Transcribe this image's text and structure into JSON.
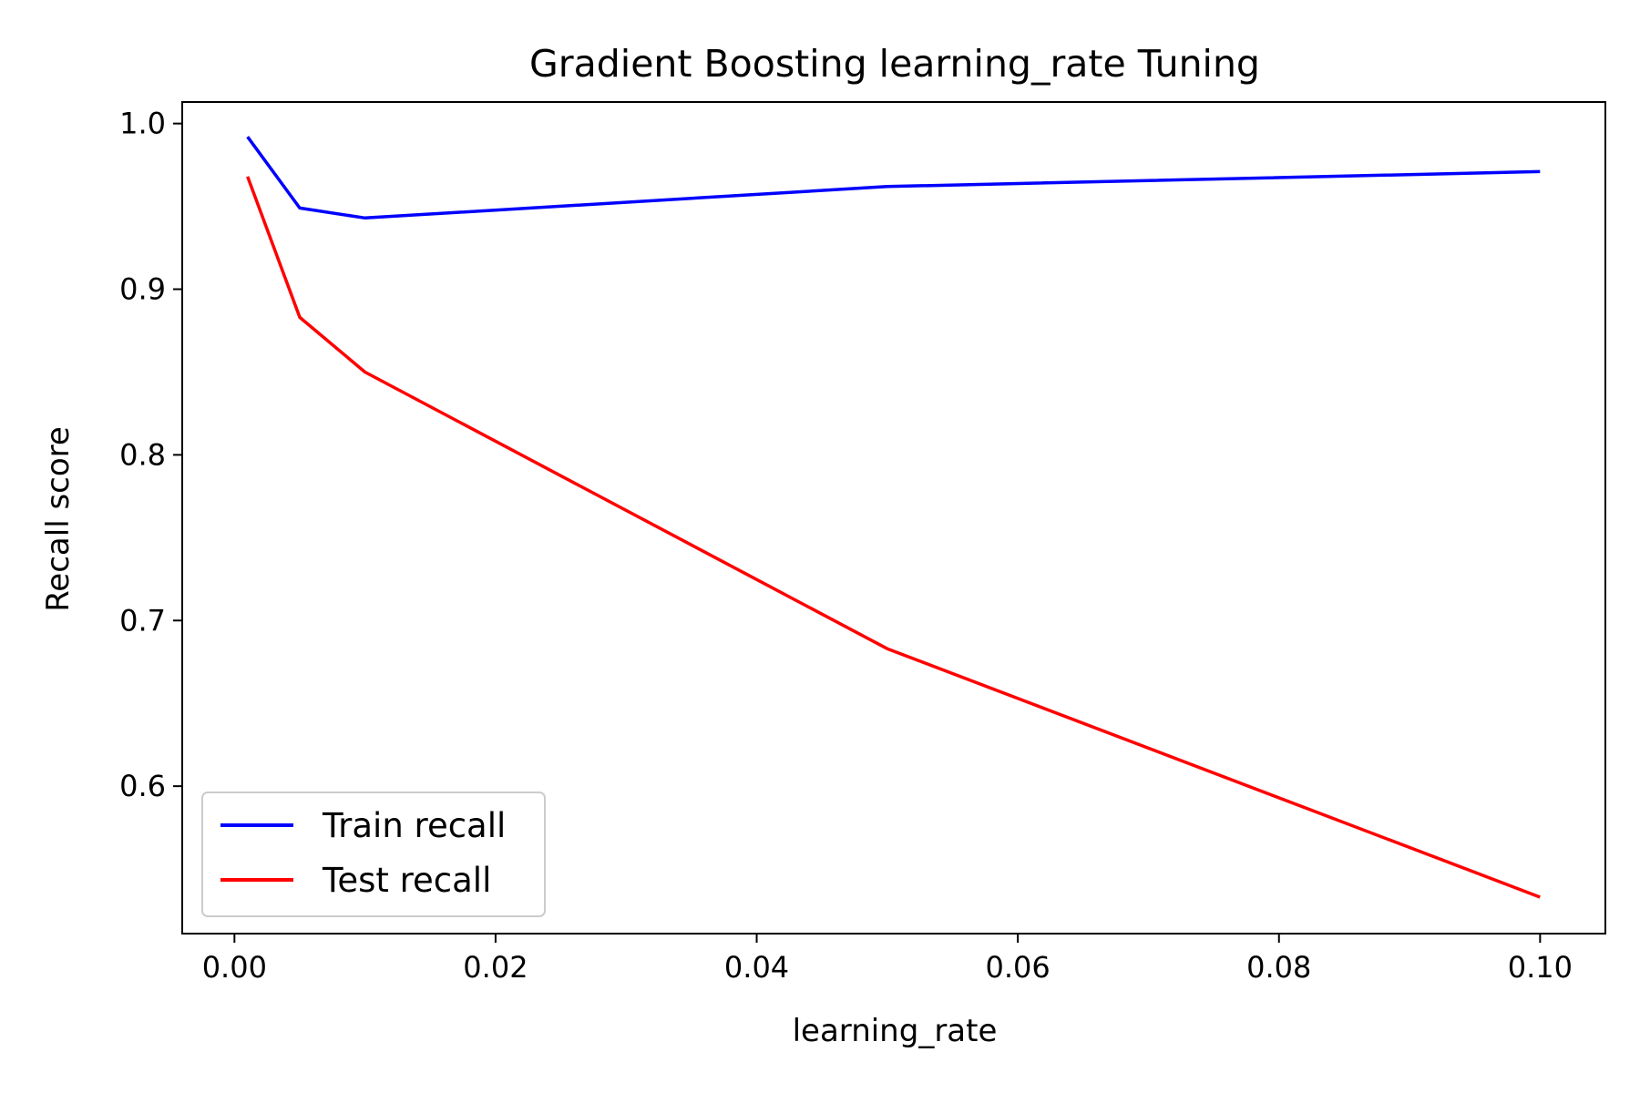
{
  "chart_data": {
    "type": "line",
    "title": "Gradient Boosting learning_rate Tuning",
    "xlabel": "learning_rate",
    "ylabel": "Recall score",
    "x": [
      0.001,
      0.005,
      0.01,
      0.05,
      0.1
    ],
    "series": [
      {
        "name": "Train recall",
        "color": "#0000ff",
        "values": [
          0.992,
          0.949,
          0.943,
          0.962,
          0.971
        ]
      },
      {
        "name": "Test recall",
        "color": "#ff0000",
        "values": [
          0.968,
          0.883,
          0.85,
          0.683,
          0.533
        ]
      }
    ],
    "xlim": [
      -0.004,
      0.105
    ],
    "ylim": [
      0.511,
      1.013
    ],
    "xticks": [
      "0.00",
      "0.02",
      "0.04",
      "0.06",
      "0.08",
      "0.10"
    ],
    "yticks": [
      "0.6",
      "0.7",
      "0.8",
      "0.9",
      "1.0"
    ],
    "grid": false,
    "legend": "lower-left"
  }
}
